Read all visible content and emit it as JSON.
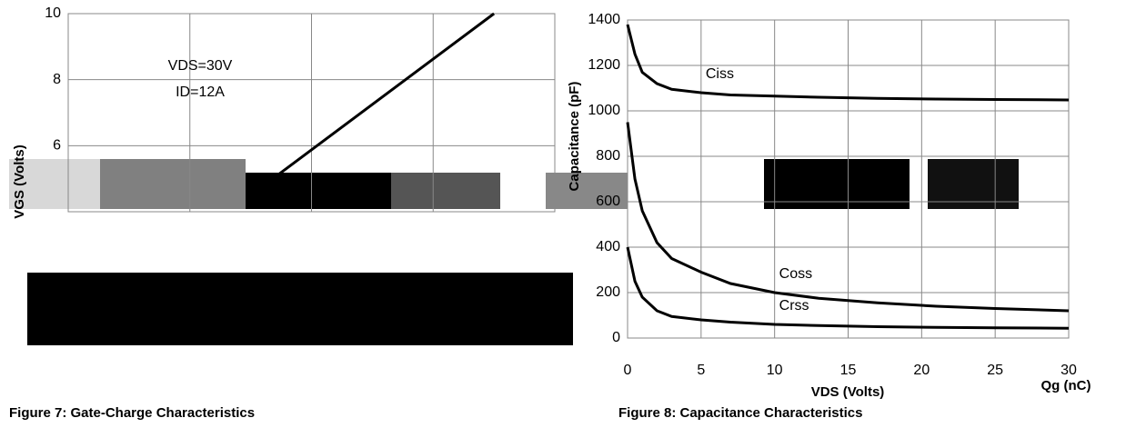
{
  "charts": [
    {
      "type": "line",
      "title": "Figure 7: Gate-Charge Characteristics",
      "ylabel": "VGS (Volts)",
      "xlabel": "Qg (nC)",
      "annotations": [
        "VDS=30V",
        "ID=12A"
      ],
      "ylim": [
        4,
        10
      ],
      "yticks": [
        6,
        8,
        10
      ],
      "xlim": [
        0,
        12
      ],
      "series": [
        {
          "name": "VGS",
          "color": "#000000",
          "x": [
            4.5,
            10.5
          ],
          "values": [
            4.5,
            10
          ]
        }
      ]
    },
    {
      "type": "line",
      "title": "Figure 8: Capacitance Characteristics",
      "ylabel": "Capacitance (pF)",
      "xlabel": "VDS (Volts)",
      "ylim": [
        0,
        1400
      ],
      "yticks": [
        0,
        200,
        400,
        600,
        800,
        1000,
        1200,
        1400
      ],
      "xlim": [
        0,
        30
      ],
      "xticks": [
        0,
        5,
        10,
        15,
        20,
        25,
        30
      ],
      "grid": true,
      "series": [
        {
          "name": "Ciss",
          "color": "#000000",
          "x": [
            0,
            0.5,
            1,
            2,
            3,
            5,
            7,
            10,
            13,
            17,
            21,
            25,
            30
          ],
          "values": [
            1380,
            1250,
            1170,
            1120,
            1095,
            1080,
            1070,
            1065,
            1060,
            1055,
            1052,
            1050,
            1048
          ]
        },
        {
          "name": "Coss",
          "color": "#000000",
          "x": [
            0,
            0.5,
            1,
            2,
            3,
            5,
            7,
            10,
            13,
            17,
            21,
            25,
            30
          ],
          "values": [
            950,
            700,
            560,
            420,
            350,
            290,
            240,
            200,
            175,
            155,
            140,
            130,
            120
          ]
        },
        {
          "name": "Crss",
          "color": "#000000",
          "x": [
            0,
            0.5,
            1,
            2,
            3,
            5,
            7,
            10,
            13,
            17,
            21,
            25,
            30
          ],
          "values": [
            400,
            250,
            180,
            120,
            95,
            80,
            70,
            60,
            55,
            50,
            47,
            45,
            43
          ]
        }
      ]
    }
  ]
}
